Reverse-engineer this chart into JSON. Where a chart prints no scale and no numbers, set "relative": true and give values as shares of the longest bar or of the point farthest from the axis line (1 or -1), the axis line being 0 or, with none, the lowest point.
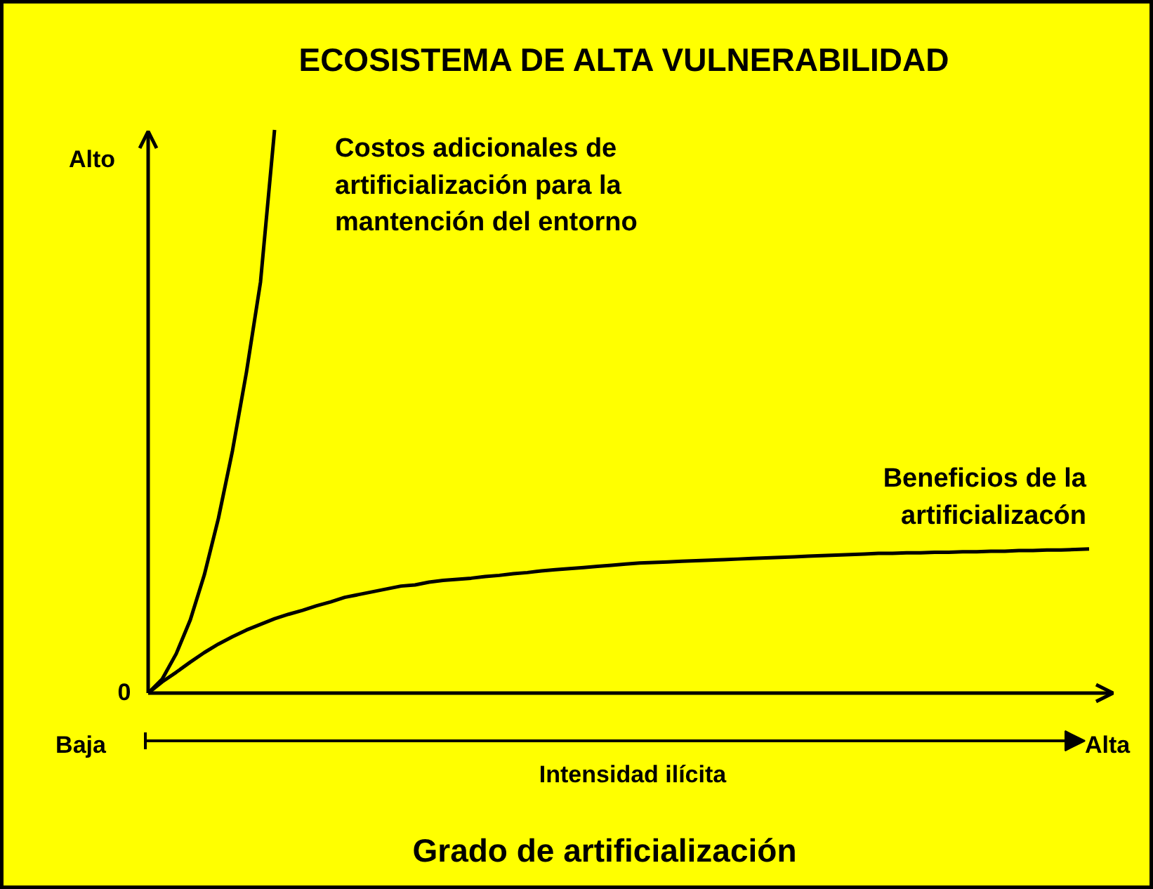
{
  "chart_data": {
    "type": "line",
    "title": "ECOSISTEMA DE ALTA VULNERABILIDAD",
    "xlabel": "Grado de artificialización",
    "relative": true,
    "grid": false,
    "annotations": [
      "Alto",
      "0",
      "Baja",
      "Alta",
      "Intensidad ilícita"
    ],
    "categories": [
      null,
      null,
      null,
      null,
      null,
      null,
      null,
      null,
      null,
      null,
      null,
      null,
      null,
      null,
      null,
      null,
      null,
      null,
      null,
      null,
      null,
      null,
      null,
      null,
      null,
      null,
      null,
      null,
      null,
      null,
      null,
      null,
      null,
      null,
      null,
      null,
      null,
      null,
      null,
      null,
      null,
      null,
      null,
      null,
      null,
      null,
      null,
      null,
      null,
      null,
      null,
      null,
      null,
      null,
      null,
      null,
      null,
      null,
      null,
      null,
      null,
      null,
      null,
      null,
      null,
      null,
      null,
      null
    ],
    "series": [
      {
        "name": "Costos adicionales de\nartificialización para la\nmantención del entorno",
        "color": "#000000",
        "values": [
          0,
          0.025,
          0.07,
          0.13,
          0.21,
          0.31,
          0.43,
          0.57,
          0.73,
          1,
          null,
          null,
          null,
          null,
          null,
          null,
          null,
          null,
          null,
          null,
          null,
          null,
          null,
          null,
          null,
          null,
          null,
          null,
          null,
          null,
          null,
          null,
          null,
          null,
          null,
          null,
          null,
          null,
          null,
          null,
          null,
          null,
          null,
          null,
          null,
          null,
          null,
          null,
          null,
          null,
          null,
          null,
          null,
          null,
          null,
          null,
          null,
          null,
          null,
          null,
          null,
          null,
          null,
          null,
          null,
          null,
          null,
          null
        ]
      },
      {
        "name": "Beneficios de la\nartificializacón",
        "color": "#000000",
        "values": [
          0,
          0.02,
          0.037,
          0.055,
          0.072,
          0.087,
          0.1,
          0.112,
          0.122,
          0.132,
          0.14,
          0.147,
          0.155,
          0.162,
          0.17,
          0.175,
          0.18,
          0.185,
          0.19,
          0.192,
          0.197,
          0.2,
          0.202,
          0.204,
          0.207,
          0.209,
          0.212,
          0.214,
          0.217,
          0.219,
          0.221,
          0.223,
          0.225,
          0.227,
          0.229,
          0.231,
          0.232,
          0.233,
          0.234,
          0.235,
          0.236,
          0.237,
          0.238,
          0.239,
          0.24,
          0.241,
          0.242,
          0.243,
          0.244,
          0.245,
          0.246,
          0.247,
          0.248,
          0.248,
          0.249,
          0.249,
          0.25,
          0.25,
          0.251,
          0.251,
          0.252,
          0.252,
          0.253,
          0.253,
          0.254,
          0.254,
          0.255,
          0.256
        ]
      }
    ]
  }
}
